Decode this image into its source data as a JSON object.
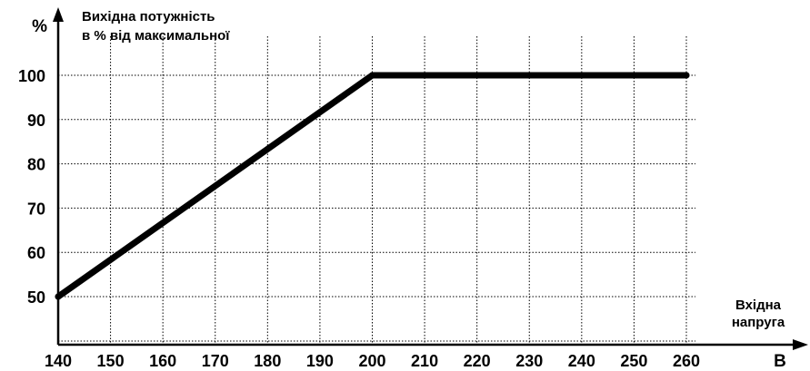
{
  "chart_data": {
    "type": "line",
    "x_unit": "В",
    "y_unit": "%",
    "ylabel_lines": [
      "Вихідна потужність",
      "в % від максимальної"
    ],
    "xlabel_lines": [
      "Вхідна",
      "напруга"
    ],
    "x_ticks": [
      140,
      150,
      160,
      170,
      180,
      190,
      200,
      210,
      220,
      230,
      240,
      250,
      260
    ],
    "y_ticks": [
      50,
      60,
      70,
      80,
      90,
      100
    ],
    "xlim": [
      140,
      260
    ],
    "ylim": [
      50,
      100
    ],
    "grid": true,
    "series": [
      {
        "x": [
          140,
          200,
          260
        ],
        "y": [
          50,
          100,
          100
        ]
      }
    ]
  },
  "colors": {
    "line": "#000000",
    "grid": "#000000",
    "axis": "#000000"
  }
}
